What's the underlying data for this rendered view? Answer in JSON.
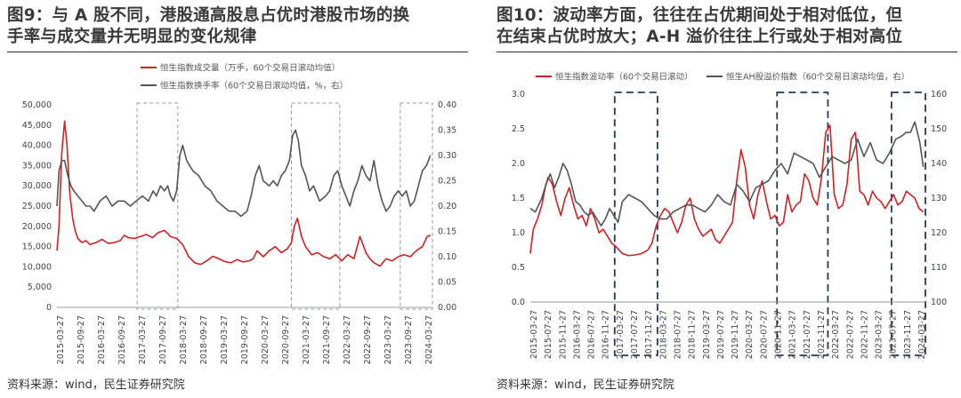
{
  "charts": [
    {
      "id": "fig9",
      "title_line1": "图9：与 A 股不同，港股通高股息占优时港股市场的换",
      "title_line2": "手率与成交量并无明显的变化规律",
      "source": "资料来源：wind，民生证券研究院",
      "colors": {
        "primary": "#d42020",
        "secondary": "#555555",
        "highlight": "#8a9aaa"
      },
      "chart_data": {
        "type": "line",
        "x_tick_labels": [
          "2015-03-27",
          "2015-09-27",
          "2016-03-27",
          "2016-09-27",
          "2017-03-27",
          "2017-09-27",
          "2018-03-27",
          "2018-09-27",
          "2019-03-27",
          "2019-09-27",
          "2020-03-27",
          "2020-09-27",
          "2021-03-27",
          "2021-09-27",
          "2022-03-27",
          "2022-09-27",
          "2023-03-27",
          "2023-09-27",
          "2024-03-27"
        ],
        "y_left_ticks": [
          "0",
          "5,000",
          "10,000",
          "15,000",
          "20,000",
          "25,000",
          "30,000",
          "35,000",
          "40,000",
          "45,000",
          "50,000"
        ],
        "y_right_ticks": [
          "0.00",
          "0.05",
          "0.10",
          "0.15",
          "0.20",
          "0.25",
          "0.30",
          "0.35",
          "0.40"
        ],
        "y_left_range": [
          0,
          50000
        ],
        "y_right_range": [
          0,
          0.4
        ],
        "x_range": [
          2015.23,
          2024.55
        ],
        "highlight_periods": [
          [
            2017.22,
            2018.23
          ],
          [
            2021.05,
            2022.25
          ],
          [
            2023.75,
            2024.55
          ]
        ],
        "legend_position": "top-left",
        "series": [
          {
            "name": "恒生指数成交量（万手，60个交易日滚动均值）",
            "color": "#d42020",
            "axis": "left",
            "x": [
              2015.23,
              2015.28,
              2015.35,
              2015.42,
              2015.48,
              2015.55,
              2015.62,
              2015.68,
              2015.75,
              2015.85,
              2015.95,
              2016.05,
              2016.2,
              2016.35,
              2016.5,
              2016.65,
              2016.8,
              2016.9,
              2017.0,
              2017.15,
              2017.3,
              2017.45,
              2017.6,
              2017.75,
              2017.9,
              2018.05,
              2018.2,
              2018.35,
              2018.5,
              2018.65,
              2018.8,
              2018.95,
              2019.1,
              2019.25,
              2019.4,
              2019.55,
              2019.7,
              2019.85,
              2020.0,
              2020.1,
              2020.2,
              2020.35,
              2020.5,
              2020.65,
              2020.8,
              2020.95,
              2021.05,
              2021.12,
              2021.2,
              2021.3,
              2021.4,
              2021.55,
              2021.7,
              2021.85,
              2022.0,
              2022.15,
              2022.3,
              2022.45,
              2022.6,
              2022.75,
              2022.9,
              2023.0,
              2023.1,
              2023.25,
              2023.4,
              2023.55,
              2023.7,
              2023.85,
              2024.0,
              2024.15,
              2024.3,
              2024.42,
              2024.5
            ],
            "y": [
              14000,
              20000,
              38000,
              46000,
              40000,
              28000,
              22000,
              19000,
              17000,
              16000,
              16500,
              15500,
              16000,
              16800,
              15800,
              16000,
              16500,
              17800,
              17200,
              17000,
              17500,
              18000,
              17200,
              18500,
              19000,
              17500,
              17000,
              15500,
              12500,
              11000,
              10600,
              11500,
              12600,
              12000,
              11300,
              11000,
              11800,
              11200,
              11500,
              12000,
              14000,
              12500,
              14000,
              15000,
              13500,
              14500,
              16000,
              20000,
              22000,
              17500,
              15000,
              13000,
              13500,
              12500,
              12000,
              13000,
              11500,
              13000,
              12000,
              17500,
              13500,
              12000,
              11000,
              10200,
              12000,
              11500,
              12500,
              13000,
              12500,
              14000,
              15000,
              17500,
              17800
            ]
          },
          {
            "name": "恒生指数换手率（60个交易日滚动均值，%，右）",
            "color": "#555555",
            "axis": "right",
            "x": [
              2015.23,
              2015.28,
              2015.35,
              2015.42,
              2015.5,
              2015.58,
              2015.65,
              2015.75,
              2015.85,
              2015.95,
              2016.05,
              2016.15,
              2016.3,
              2016.45,
              2016.6,
              2016.75,
              2016.9,
              2017.05,
              2017.2,
              2017.35,
              2017.5,
              2017.62,
              2017.7,
              2017.8,
              2017.9,
              2017.98,
              2018.05,
              2018.12,
              2018.2,
              2018.28,
              2018.35,
              2018.45,
              2018.6,
              2018.75,
              2018.9,
              2019.05,
              2019.2,
              2019.35,
              2019.5,
              2019.65,
              2019.8,
              2019.95,
              2020.05,
              2020.15,
              2020.25,
              2020.35,
              2020.5,
              2020.6,
              2020.7,
              2020.8,
              2020.9,
              2021.0,
              2021.08,
              2021.15,
              2021.22,
              2021.3,
              2021.4,
              2021.5,
              2021.6,
              2021.75,
              2021.9,
              2022.0,
              2022.1,
              2022.2,
              2022.3,
              2022.4,
              2022.5,
              2022.6,
              2022.7,
              2022.8,
              2022.9,
              2023.0,
              2023.1,
              2023.2,
              2023.3,
              2023.4,
              2023.5,
              2023.6,
              2023.7,
              2023.8,
              2023.9,
              2024.0,
              2024.1,
              2024.2,
              2024.3,
              2024.4,
              2024.5
            ],
            "y": [
              0.2,
              0.27,
              0.29,
              0.29,
              0.26,
              0.24,
              0.23,
              0.22,
              0.21,
              0.2,
              0.2,
              0.19,
              0.21,
              0.22,
              0.2,
              0.21,
              0.21,
              0.2,
              0.21,
              0.22,
              0.21,
              0.23,
              0.22,
              0.24,
              0.23,
              0.24,
              0.22,
              0.21,
              0.23,
              0.3,
              0.32,
              0.29,
              0.27,
              0.26,
              0.24,
              0.23,
              0.21,
              0.2,
              0.19,
              0.19,
              0.18,
              0.19,
              0.22,
              0.26,
              0.28,
              0.25,
              0.24,
              0.25,
              0.24,
              0.26,
              0.27,
              0.29,
              0.34,
              0.35,
              0.33,
              0.28,
              0.26,
              0.23,
              0.24,
              0.21,
              0.22,
              0.23,
              0.26,
              0.27,
              0.24,
              0.22,
              0.2,
              0.23,
              0.25,
              0.28,
              0.26,
              0.25,
              0.29,
              0.24,
              0.21,
              0.19,
              0.2,
              0.22,
              0.23,
              0.22,
              0.23,
              0.2,
              0.21,
              0.24,
              0.27,
              0.28,
              0.3
            ]
          }
        ]
      }
    },
    {
      "id": "fig10",
      "title_line1": "图10：波动率方面，往往在占优期间处于相对低位，但",
      "title_line2": "在结束占优时放大；A-H 溢价往往上行或处于相对高位",
      "source": "资料来源：wind，民生证券研究院",
      "colors": {
        "primary": "#d42020",
        "secondary": "#555555",
        "highlight": "#1f3a5f"
      },
      "chart_data": {
        "type": "line",
        "x_tick_labels": [
          "2015-03-27",
          "2015-07-27",
          "2015-11-27",
          "2016-03-27",
          "2016-07-27",
          "2016-11-27",
          "2017-03-27",
          "2017-07-27",
          "2017-11-27",
          "2018-03-27",
          "2018-07-27",
          "2018-11-27",
          "2019-03-27",
          "2019-07-27",
          "2019-11-27",
          "2020-03-27",
          "2020-07-27",
          "2020-11-27",
          "2021-03-27",
          "2021-07-27",
          "2021-11-27",
          "2022-03-27",
          "2022-07-27",
          "2022-11-27",
          "2023-03-27",
          "2023-07-27",
          "2023-11-27",
          "2024-03-27"
        ],
        "y_left_ticks": [
          "0.0",
          "0.5",
          "1.0",
          "1.5",
          "2.0",
          "2.5",
          "3.0"
        ],
        "y_right_ticks": [
          "100",
          "110",
          "120",
          "130",
          "140",
          "150",
          "160"
        ],
        "y_left_range": [
          0,
          3.0
        ],
        "y_right_range": [
          100,
          160
        ],
        "x_range": [
          2015.23,
          2024.55
        ],
        "highlight_periods": [
          [
            2017.22,
            2018.23
          ],
          [
            2021.05,
            2022.25
          ],
          [
            2023.75,
            2024.55
          ]
        ],
        "legend_position": "top",
        "series": [
          {
            "name": "恒生指数波动率（60个交易日滚动）",
            "color": "#d42020",
            "axis": "left",
            "x": [
              2015.23,
              2015.3,
              2015.4,
              2015.5,
              2015.58,
              2015.65,
              2015.75,
              2015.85,
              2015.95,
              2016.05,
              2016.15,
              2016.25,
              2016.35,
              2016.45,
              2016.55,
              2016.65,
              2016.75,
              2016.85,
              2016.95,
              2017.05,
              2017.15,
              2017.25,
              2017.4,
              2017.55,
              2017.7,
              2017.85,
              2018.0,
              2018.1,
              2018.2,
              2018.3,
              2018.4,
              2018.5,
              2018.6,
              2018.7,
              2018.8,
              2018.9,
              2019.0,
              2019.1,
              2019.2,
              2019.3,
              2019.4,
              2019.5,
              2019.6,
              2019.7,
              2019.8,
              2019.9,
              2020.0,
              2020.1,
              2020.2,
              2020.3,
              2020.4,
              2020.5,
              2020.6,
              2020.7,
              2020.8,
              2020.9,
              2021.0,
              2021.1,
              2021.2,
              2021.3,
              2021.4,
              2021.5,
              2021.6,
              2021.7,
              2021.8,
              2021.9,
              2022.0,
              2022.1,
              2022.2,
              2022.3,
              2022.4,
              2022.5,
              2022.6,
              2022.7,
              2022.8,
              2022.9,
              2023.0,
              2023.1,
              2023.2,
              2023.3,
              2023.4,
              2023.5,
              2023.6,
              2023.7,
              2023.8,
              2023.9,
              2024.0,
              2024.1,
              2024.2,
              2024.3,
              2024.4,
              2024.5
            ],
            "y": [
              0.7,
              1.05,
              1.2,
              1.4,
              1.65,
              1.8,
              1.7,
              1.45,
              1.25,
              1.5,
              1.65,
              1.4,
              1.2,
              1.25,
              1.1,
              1.35,
              1.2,
              1.0,
              1.05,
              0.95,
              0.85,
              0.8,
              0.7,
              0.67,
              0.68,
              0.7,
              0.75,
              0.85,
              1.1,
              1.25,
              1.35,
              1.3,
              1.15,
              1.0,
              1.15,
              1.4,
              1.5,
              1.2,
              1.05,
              0.95,
              1.0,
              1.05,
              0.9,
              0.85,
              0.95,
              1.05,
              1.15,
              1.75,
              2.2,
              1.95,
              1.4,
              1.2,
              1.55,
              1.75,
              1.45,
              1.2,
              1.25,
              1.1,
              1.15,
              1.55,
              1.3,
              1.4,
              1.45,
              1.85,
              1.75,
              1.5,
              1.4,
              1.8,
              2.45,
              2.55,
              1.55,
              1.35,
              1.4,
              1.7,
              2.35,
              2.45,
              1.6,
              1.55,
              1.4,
              1.6,
              1.5,
              1.45,
              1.35,
              1.45,
              1.55,
              1.4,
              1.45,
              1.6,
              1.55,
              1.5,
              1.35,
              1.3
            ]
          },
          {
            "name": "恒生AH股溢价指数（60个交易日滚动均值，右）",
            "color": "#555555",
            "axis": "right",
            "x": [
              2015.23,
              2015.35,
              2015.5,
              2015.6,
              2015.7,
              2015.8,
              2015.9,
              2016.0,
              2016.1,
              2016.2,
              2016.3,
              2016.4,
              2016.5,
              2016.6,
              2016.7,
              2016.8,
              2016.9,
              2017.0,
              2017.1,
              2017.2,
              2017.3,
              2017.4,
              2017.55,
              2017.7,
              2017.85,
              2018.0,
              2018.15,
              2018.3,
              2018.45,
              2018.6,
              2018.75,
              2018.9,
              2019.05,
              2019.2,
              2019.35,
              2019.5,
              2019.65,
              2019.8,
              2019.95,
              2020.1,
              2020.25,
              2020.4,
              2020.55,
              2020.7,
              2020.85,
              2021.0,
              2021.15,
              2021.3,
              2021.45,
              2021.6,
              2021.75,
              2021.9,
              2022.05,
              2022.2,
              2022.35,
              2022.5,
              2022.65,
              2022.8,
              2022.95,
              2023.1,
              2023.25,
              2023.4,
              2023.55,
              2023.7,
              2023.85,
              2024.0,
              2024.1,
              2024.2,
              2024.3,
              2024.42,
              2024.5
            ],
            "y": [
              127,
              126,
              130,
              134,
              137,
              133,
              136,
              140,
              138,
              134,
              129,
              128,
              126,
              125,
              126,
              124,
              122,
              124,
              127,
              125,
              123,
              129,
              131,
              130,
              129,
              127,
              125,
              124,
              124,
              126,
              127,
              128,
              128,
              127,
              126,
              128,
              131,
              129,
              128,
              134,
              132,
              129,
              133,
              134,
              135,
              138,
              140,
              137,
              143,
              142,
              141,
              140,
              136,
              139,
              142,
              141,
              140,
              141,
              147,
              142,
              146,
              141,
              140,
              143,
              147,
              148,
              149,
              149,
              152,
              146,
              139
            ]
          }
        ]
      }
    }
  ]
}
